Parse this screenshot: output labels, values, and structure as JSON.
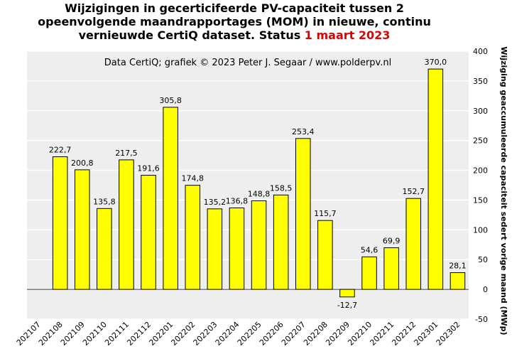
{
  "title": {
    "line1": "Wijzigingen  in gecerticifeerde PV-capaciteit tussen 2",
    "line2": "opeenvolgende maandrapportages (MOM) in nieuwe, continu",
    "line3_prefix": "vernieuwde CertiQ dataset. Status ",
    "line3_date": "1 maart 2023"
  },
  "credit": "Data CertiQ; grafiek © 2023 Peter J. Segaar / www.polderpv.nl",
  "colors": {
    "bar": "#ffff00",
    "bar_stroke": "#000000",
    "plot_bg": "#eeeeee",
    "grid": "#ffffff",
    "date": "#e00000"
  },
  "chart_data": {
    "type": "bar",
    "title": "Wijzigingen in gecerticifeerde PV-capaciteit tussen 2 opeenvolgende maandrapportages (MOM) in nieuwe, continu vernieuwde CertiQ dataset. Status 1 maart 2023",
    "categories": [
      "202107",
      "202108",
      "202109",
      "202110",
      "202111",
      "202112",
      "202201",
      "202202",
      "202203",
      "202204",
      "202205",
      "202206",
      "202207",
      "202208",
      "202209",
      "202210",
      "202211",
      "202212",
      "202301",
      "202302"
    ],
    "values": [
      null,
      222.7,
      200.8,
      135.8,
      217.5,
      191.6,
      305.8,
      174.8,
      135.2,
      136.8,
      148.8,
      158.5,
      253.4,
      115.7,
      -12.7,
      54.6,
      69.9,
      152.7,
      370.0,
      28.1
    ],
    "value_labels": [
      "",
      "222,7",
      "200,8",
      "135,8",
      "217,5",
      "191,6",
      "305,8",
      "174,8",
      "135,2",
      "136,8",
      "148,8",
      "158,5",
      "253,4",
      "115,7",
      "-12,7",
      "54,6",
      "69,9",
      "152,7",
      "370,0",
      "28,1"
    ],
    "xlabel": "",
    "ylabel": "Wijziging geaccumuleerde capaciteit sedert vorige maand (MWp)",
    "ylim": [
      -50,
      400
    ],
    "yticks": [
      -50,
      0,
      50,
      100,
      150,
      200,
      250,
      300,
      350,
      400
    ],
    "ytick_labels": [
      "-50",
      "0",
      "50",
      "100",
      "150",
      "200",
      "250",
      "300",
      "350",
      "400"
    ],
    "y_axis_side": "right",
    "grid": true,
    "legend": "none"
  }
}
